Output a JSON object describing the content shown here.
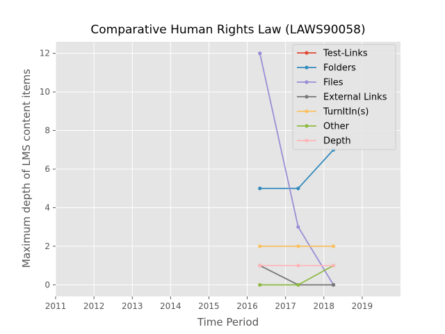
{
  "colors": {
    "plot_background": "#e5e5e5",
    "grid": "#ffffff",
    "tick": "#555555"
  },
  "chart_data": {
    "type": "line",
    "title": "Comparative Human Rights Law (LAWS90058)",
    "xlabel": "Time Period",
    "ylabel": "Maximum depth of LMS content items",
    "xlim": [
      2011,
      2020
    ],
    "ylim": [
      -0.6,
      12.6
    ],
    "x_ticks": [
      "2011",
      "2012",
      "2013",
      "2014",
      "2015",
      "2016",
      "2017",
      "2018",
      "2019"
    ],
    "y_ticks": [
      "0",
      "2",
      "4",
      "6",
      "8",
      "10",
      "12"
    ],
    "x": [
      2016.33,
      2017.33,
      2018.25
    ],
    "grid": true,
    "legend_position": "top-right",
    "series": [
      {
        "name": "Test-Links",
        "color": "#e24a33",
        "values": [
          null,
          null,
          null
        ]
      },
      {
        "name": "Folders",
        "color": "#348abd",
        "values": [
          5,
          5,
          7
        ]
      },
      {
        "name": "Files",
        "color": "#988ed5",
        "values": [
          12,
          3,
          0
        ]
      },
      {
        "name": "External Links",
        "color": "#777777",
        "values": [
          1,
          0,
          0
        ]
      },
      {
        "name": "TurnItIn(s)",
        "color": "#fbc15e",
        "values": [
          2,
          2,
          2
        ]
      },
      {
        "name": "Other",
        "color": "#8eba42",
        "values": [
          0,
          0,
          1
        ]
      },
      {
        "name": "Depth",
        "color": "#ffb5b8",
        "values": [
          1,
          1,
          1
        ]
      }
    ]
  }
}
